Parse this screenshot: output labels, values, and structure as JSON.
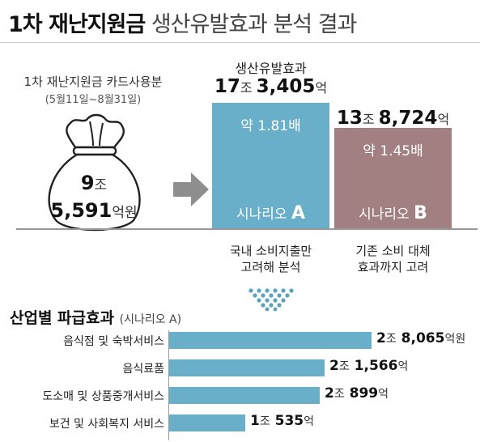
{
  "title": {
    "bold": "1차 재난지원금",
    "light": "생산유발효과 분석 결과"
  },
  "bag": {
    "label": "1차 재난지원금 카드사용분",
    "period": "(5월11일~8월31일)",
    "value_line1_num": "9",
    "value_line1_unit": "조",
    "value_line2_num": "5,591",
    "value_line2_unit": "억원"
  },
  "colors": {
    "scenario_a": "#6aafc9",
    "scenario_b": "#a27f80",
    "industry_bar": "#6aafc9",
    "chevron": "#5ba3be"
  },
  "icons": {
    "bag": "money-bag-icon",
    "arrow": "arrow-right-icon",
    "chevrons": "chevron-down-icon"
  },
  "chart_data": [
    {
      "type": "bar",
      "title": "생산유발효과",
      "categories": [
        "시나리오 A",
        "시나리오 B"
      ],
      "values": [
        173405,
        138724
      ],
      "unit": "억원",
      "value_labels": [
        {
          "num1": "17",
          "unit1": "조",
          "num2": "3,405",
          "unit2": "억"
        },
        {
          "num1": "13",
          "unit1": "조",
          "num2": "8,724",
          "unit2": "억"
        }
      ],
      "multipliers": [
        "약 1.81배",
        "약 1.45배"
      ],
      "scenario_names": [
        {
          "prefix": "시나리오",
          "letter": "A"
        },
        {
          "prefix": "시나리오",
          "letter": "B"
        }
      ],
      "descriptions": [
        [
          "국내 소비지출만",
          "고려해 분석"
        ],
        [
          "기존 소비 대체",
          "효과까지 고려"
        ]
      ],
      "ylim": [
        0,
        173405
      ]
    },
    {
      "type": "bar",
      "orientation": "horizontal",
      "title": "산업별 파급효과",
      "subtitle": "(시나리오 A)",
      "categories": [
        "음식점 및 숙박서비스",
        "음식료품",
        "도소매 및 상품중개서비스",
        "보건 및 사회복지 서비스"
      ],
      "values": [
        28065,
        21566,
        20899,
        10535
      ],
      "unit": "억원",
      "value_labels": [
        {
          "num1": "2",
          "unit1": "조",
          "num2": "8,065",
          "unit2": "억원"
        },
        {
          "num1": "2",
          "unit1": "조",
          "num2": "1,566",
          "unit2": "억"
        },
        {
          "num1": "2",
          "unit1": "조",
          "num2": "899",
          "unit2": "억"
        },
        {
          "num1": "1",
          "unit1": "조",
          "num2": "535",
          "unit2": "억"
        }
      ],
      "xlim": [
        0,
        28065
      ]
    }
  ]
}
